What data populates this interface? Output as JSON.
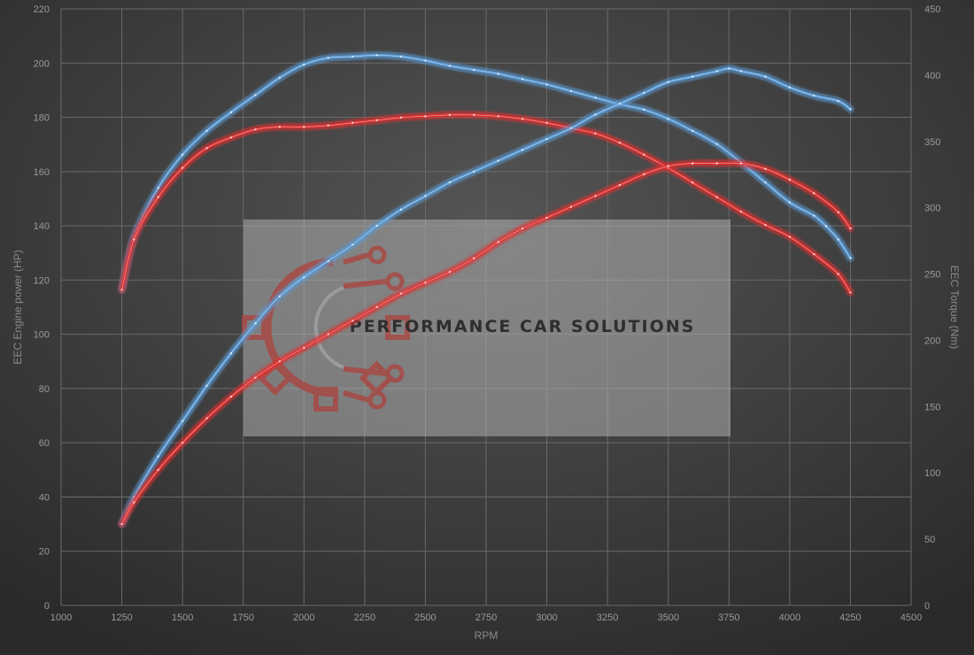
{
  "chart_data": {
    "type": "line",
    "xlabel": "RPM",
    "ylabel_left": "EEC Engine power (HP)",
    "ylabel_right": "EEC Torque (Nm)",
    "xlim": [
      1000,
      4500
    ],
    "xticks": [
      1000,
      1250,
      1500,
      1750,
      2000,
      2250,
      2500,
      2750,
      3000,
      3250,
      3500,
      3750,
      4000,
      4250,
      4500
    ],
    "ylim_left": [
      0,
      220
    ],
    "yticks_left": [
      0,
      20,
      40,
      60,
      80,
      100,
      120,
      140,
      160,
      180,
      200,
      220
    ],
    "ylim_right": [
      0,
      450
    ],
    "yticks_right": [
      0,
      50,
      100,
      150,
      200,
      250,
      300,
      350,
      400,
      450
    ],
    "grid": true,
    "colors": {
      "blue": "#5b9bd5",
      "red": "#e03030",
      "background": "#3a3a3a",
      "grid": "#6a6a6a"
    },
    "series": [
      {
        "axis": "right",
        "color": "#5b9bd5",
        "x": [
          1250,
          1300,
          1400,
          1500,
          1600,
          1700,
          1800,
          1900,
          2000,
          2100,
          2200,
          2300,
          2400,
          2500,
          2600,
          2700,
          2800,
          2900,
          3000,
          3100,
          3200,
          3300,
          3400,
          3500,
          3600,
          3700,
          3800,
          3900,
          4000,
          4100,
          4150,
          4200,
          4250
        ],
        "y": [
          238,
          278,
          315,
          340,
          358,
          372,
          385,
          398,
          408,
          413,
          414,
          415,
          414,
          411,
          407,
          404,
          401,
          397,
          393,
          388,
          383,
          378,
          374,
          367,
          358,
          348,
          334,
          319,
          304,
          294,
          286,
          276,
          262
        ]
      },
      {
        "axis": "right",
        "color": "#e03030",
        "x": [
          1250,
          1300,
          1400,
          1500,
          1600,
          1700,
          1800,
          1900,
          2000,
          2100,
          2200,
          2300,
          2400,
          2500,
          2600,
          2700,
          2800,
          2900,
          3000,
          3100,
          3200,
          3300,
          3400,
          3500,
          3600,
          3700,
          3800,
          3900,
          4000,
          4100,
          4200,
          4250
        ],
        "y": [
          238,
          276,
          308,
          330,
          345,
          353,
          359,
          361,
          361,
          362,
          364,
          366,
          368,
          369,
          370,
          370,
          369,
          367,
          364,
          360,
          356,
          349,
          340,
          330,
          319,
          308,
          297,
          287,
          278,
          265,
          250,
          236
        ]
      },
      {
        "axis": "left",
        "color": "#5b9bd5",
        "x": [
          1250,
          1300,
          1400,
          1500,
          1600,
          1700,
          1800,
          1900,
          2000,
          2100,
          2200,
          2300,
          2400,
          2500,
          2600,
          2700,
          2800,
          2900,
          3000,
          3100,
          3200,
          3300,
          3400,
          3500,
          3600,
          3700,
          3750,
          3800,
          3900,
          4000,
          4100,
          4200,
          4250
        ],
        "y": [
          30,
          40,
          55,
          68,
          81,
          93,
          104,
          114,
          121,
          127,
          133,
          140,
          146,
          151,
          156,
          160,
          164,
          168,
          172,
          176,
          181,
          185,
          189,
          193,
          195,
          197,
          198,
          197,
          195,
          191,
          188,
          186,
          183
        ]
      },
      {
        "axis": "left",
        "color": "#e03030",
        "x": [
          1250,
          1300,
          1400,
          1500,
          1600,
          1700,
          1800,
          1900,
          2000,
          2100,
          2200,
          2300,
          2400,
          2500,
          2600,
          2700,
          2800,
          2900,
          3000,
          3100,
          3200,
          3300,
          3400,
          3500,
          3600,
          3700,
          3800,
          3900,
          4000,
          4100,
          4200,
          4250
        ],
        "y": [
          30,
          38,
          50,
          60,
          69,
          77,
          84,
          90,
          95,
          100,
          105,
          110,
          115,
          119,
          123,
          128,
          134,
          139,
          143,
          147,
          151,
          155,
          159,
          162,
          163,
          163,
          163,
          161,
          157,
          152,
          145,
          139
        ]
      }
    ]
  },
  "watermark": {
    "text": "PERFORMANCE CAR SOLUTIONS",
    "icon": "gear-circuit-logo-icon"
  }
}
